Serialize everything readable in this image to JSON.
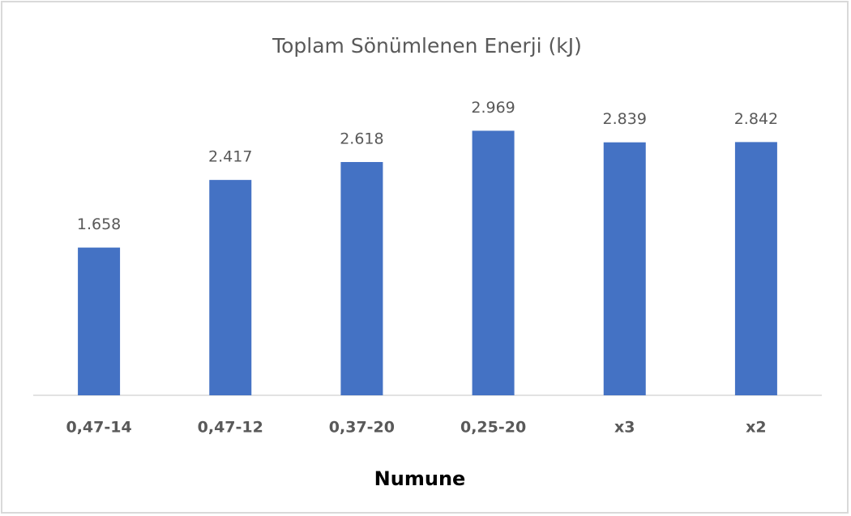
{
  "chart_data": {
    "type": "bar",
    "title": "Toplam Sönümlenen Enerji (kJ)",
    "xlabel": "Numune",
    "categories": [
      "0,47-14",
      "0,47-12",
      "0,37-20",
      "0,25-20",
      "x3",
      "x2"
    ],
    "values": [
      1.658,
      2.417,
      2.618,
      2.969,
      2.839,
      2.842
    ],
    "color": "#4472c4",
    "ylim": [
      0,
      3.5
    ]
  }
}
